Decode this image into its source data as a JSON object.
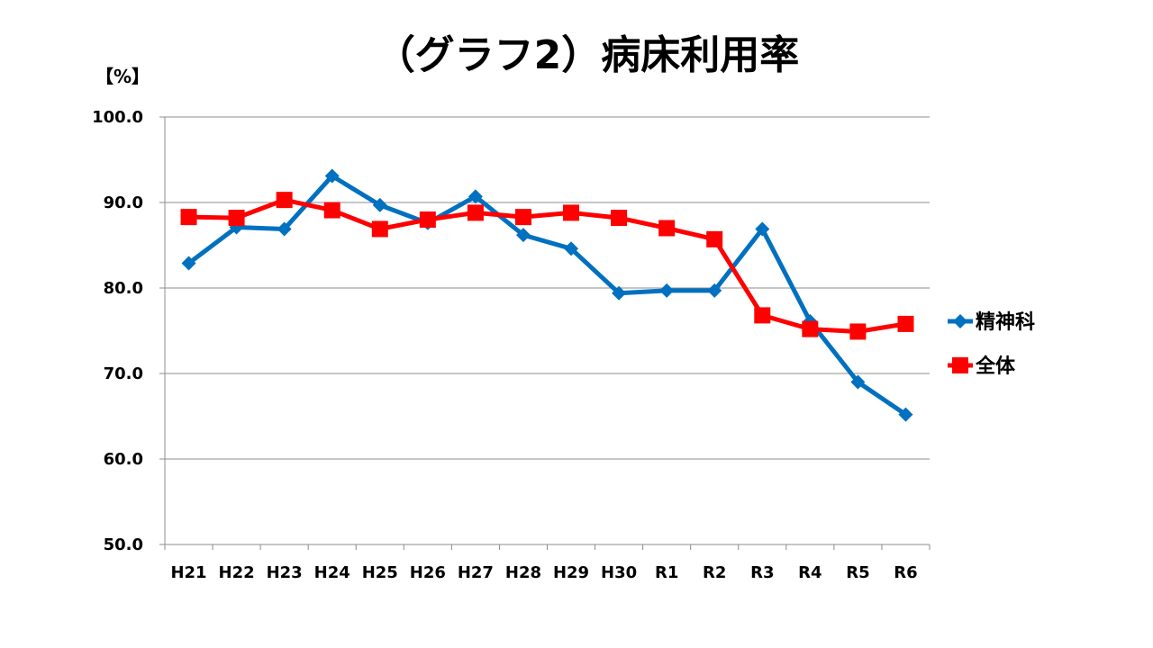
{
  "chart_data": {
    "type": "line",
    "title": "（グラフ2）病床利用率",
    "unit_label": "【%】",
    "ylim": [
      50,
      100
    ],
    "y_ticks": [
      "50.0",
      "60.0",
      "70.0",
      "80.0",
      "90.0",
      "100.0"
    ],
    "y_tick_values": [
      50,
      60,
      70,
      80,
      90,
      100
    ],
    "categories": [
      "H21",
      "H22",
      "H23",
      "H24",
      "H25",
      "H26",
      "H27",
      "H28",
      "H29",
      "H30",
      "R1",
      "R2",
      "R3",
      "R4",
      "R5",
      "R6"
    ],
    "grid": true,
    "legend_position": "right",
    "series": [
      {
        "name": "精神科",
        "color": "#0070C0",
        "marker": "diamond",
        "values": [
          82.9,
          87.1,
          86.9,
          93.1,
          89.7,
          87.6,
          90.7,
          86.2,
          84.6,
          79.4,
          79.7,
          79.7,
          86.9,
          76.1,
          69.0,
          65.2
        ]
      },
      {
        "name": "全体",
        "color": "#FF0000",
        "marker": "square",
        "values": [
          88.3,
          88.2,
          90.3,
          89.1,
          86.9,
          88.0,
          88.8,
          88.3,
          88.8,
          88.2,
          87.0,
          85.7,
          76.8,
          75.2,
          74.9,
          75.8
        ]
      }
    ]
  }
}
